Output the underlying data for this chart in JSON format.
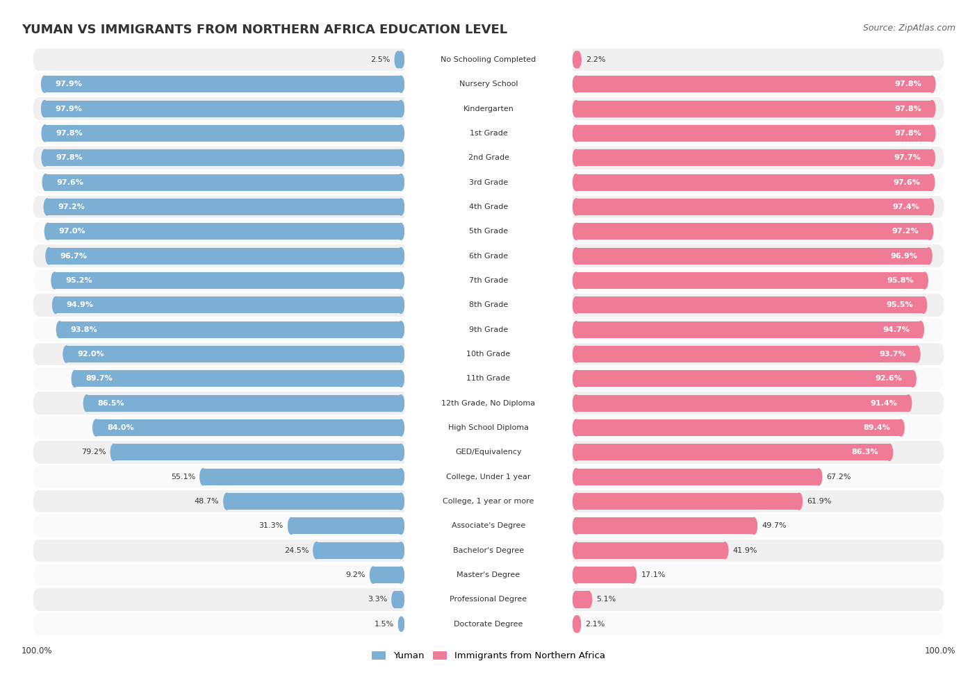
{
  "title": "YUMAN VS IMMIGRANTS FROM NORTHERN AFRICA EDUCATION LEVEL",
  "source": "Source: ZipAtlas.com",
  "categories": [
    "No Schooling Completed",
    "Nursery School",
    "Kindergarten",
    "1st Grade",
    "2nd Grade",
    "3rd Grade",
    "4th Grade",
    "5th Grade",
    "6th Grade",
    "7th Grade",
    "8th Grade",
    "9th Grade",
    "10th Grade",
    "11th Grade",
    "12th Grade, No Diploma",
    "High School Diploma",
    "GED/Equivalency",
    "College, Under 1 year",
    "College, 1 year or more",
    "Associate's Degree",
    "Bachelor's Degree",
    "Master's Degree",
    "Professional Degree",
    "Doctorate Degree"
  ],
  "yuman": [
    2.5,
    97.9,
    97.9,
    97.8,
    97.8,
    97.6,
    97.2,
    97.0,
    96.7,
    95.2,
    94.9,
    93.8,
    92.0,
    89.7,
    86.5,
    84.0,
    79.2,
    55.1,
    48.7,
    31.3,
    24.5,
    9.2,
    3.3,
    1.5
  ],
  "immigrants": [
    2.2,
    97.8,
    97.8,
    97.8,
    97.7,
    97.6,
    97.4,
    97.2,
    96.9,
    95.8,
    95.5,
    94.7,
    93.7,
    92.6,
    91.4,
    89.4,
    86.3,
    67.2,
    61.9,
    49.7,
    41.9,
    17.1,
    5.1,
    2.1
  ],
  "yuman_color": "#7bafd4",
  "immigrants_color": "#f07b96",
  "background_color": "#ffffff",
  "row_even_color": "#f0f0f0",
  "row_odd_color": "#fafafa",
  "yuman_label": "Yuman",
  "immigrants_label": "Immigrants from Northern Africa",
  "title_fontsize": 13,
  "source_fontsize": 9,
  "label_fontsize": 8,
  "value_fontsize": 8
}
